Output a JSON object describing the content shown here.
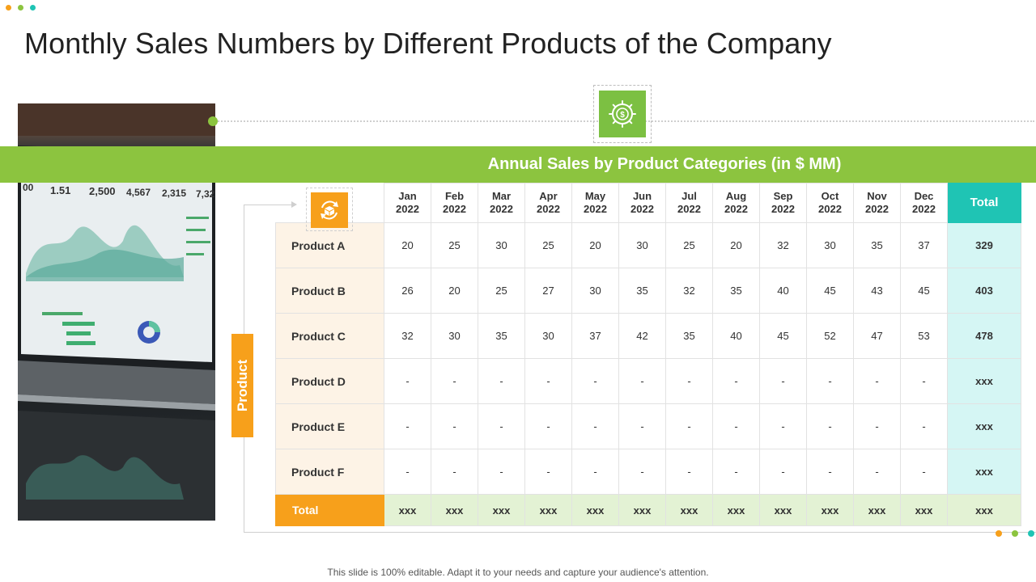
{
  "slide": {
    "title": "Monthly Sales Numbers by Different Products of the Company",
    "footer": "This slide is 100% editable. Adapt it to your needs and capture your audience's attention.",
    "accent_colors": {
      "green": "#8cc43f",
      "orange": "#f7a01b",
      "teal": "#1fc4b4"
    },
    "top_dots": [
      "#f7a01b",
      "#8cc43f",
      "#1fc4b4"
    ],
    "end_dots": [
      "#f7a01b",
      "#8cc43f",
      "#1fc4b4"
    ]
  },
  "image": {
    "icon": "laptop-analytics-photo"
  },
  "banner": {
    "title": "Annual Sales by Product Categories (in $ MM)",
    "icon": "money-cycle-icon"
  },
  "table": {
    "side_label": "Product",
    "corner_icon": "box-cycle-icon",
    "months": [
      [
        "Jan",
        "2022"
      ],
      [
        "Feb",
        "2022"
      ],
      [
        "Mar",
        "2022"
      ],
      [
        "Apr",
        "2022"
      ],
      [
        "May",
        "2022"
      ],
      [
        "Jun",
        "2022"
      ],
      [
        "Jul",
        "2022"
      ],
      [
        "Aug",
        "2022"
      ],
      [
        "Sep",
        "2022"
      ],
      [
        "Oct",
        "2022"
      ],
      [
        "Nov",
        "2022"
      ],
      [
        "Dec",
        "2022"
      ]
    ],
    "total_label": "Total",
    "rows": [
      {
        "name": "Product A",
        "values": [
          "20",
          "25",
          "30",
          "25",
          "20",
          "30",
          "25",
          "20",
          "32",
          "30",
          "35",
          "37"
        ],
        "total": "329"
      },
      {
        "name": "Product B",
        "values": [
          "26",
          "20",
          "25",
          "27",
          "30",
          "35",
          "32",
          "35",
          "40",
          "45",
          "43",
          "45"
        ],
        "total": "403"
      },
      {
        "name": "Product C",
        "values": [
          "32",
          "30",
          "35",
          "30",
          "37",
          "42",
          "35",
          "40",
          "45",
          "52",
          "47",
          "53"
        ],
        "total": "478"
      },
      {
        "name": "Product D",
        "values": [
          "-",
          "-",
          "-",
          "-",
          "-",
          "-",
          "-",
          "-",
          "-",
          "-",
          "-",
          "-"
        ],
        "total": "xxx"
      },
      {
        "name": "Product E",
        "values": [
          "-",
          "-",
          "-",
          "-",
          "-",
          "-",
          "-",
          "-",
          "-",
          "-",
          "-",
          "-"
        ],
        "total": "xxx"
      },
      {
        "name": "Product F",
        "values": [
          "-",
          "-",
          "-",
          "-",
          "-",
          "-",
          "-",
          "-",
          "-",
          "-",
          "-",
          "-"
        ],
        "total": "xxx"
      }
    ],
    "total_row": {
      "label": "Total",
      "values": [
        "xxx",
        "xxx",
        "xxx",
        "xxx",
        "xxx",
        "xxx",
        "xxx",
        "xxx",
        "xxx",
        "xxx",
        "xxx",
        "xxx"
      ],
      "total": "xxx"
    }
  }
}
